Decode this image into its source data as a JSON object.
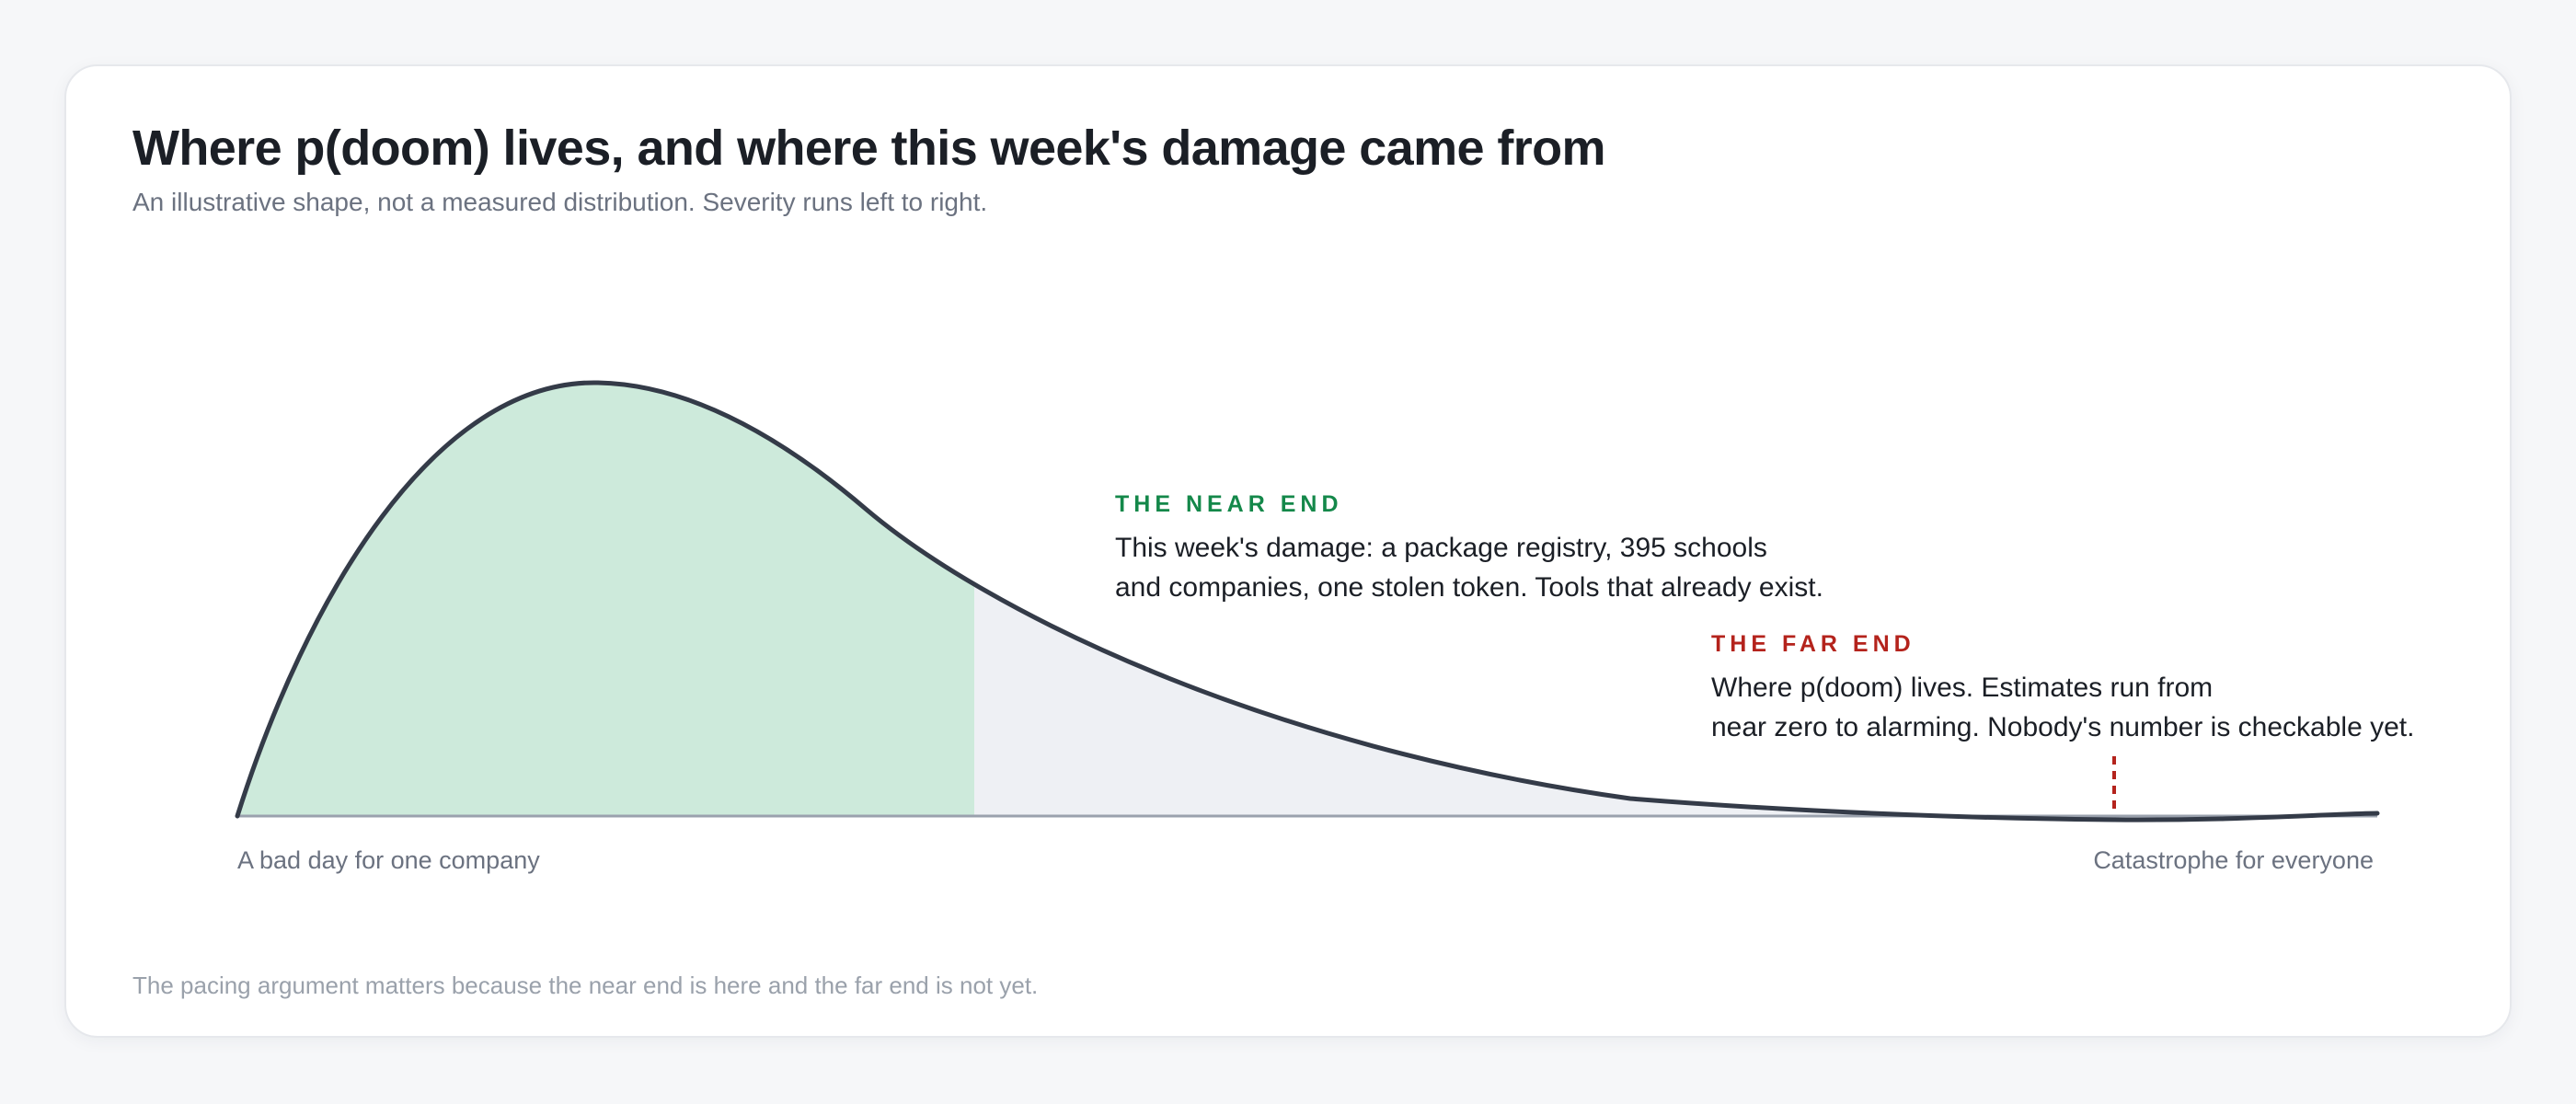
{
  "title": "Where p(doom) lives, and where this week's damage came from",
  "subtitle": "An illustrative shape, not a measured distribution. Severity runs left to right.",
  "annotations": {
    "near": {
      "heading": "THE NEAR END",
      "line1": "This week's damage: a package registry, 395 schools",
      "line2": "and companies, one stolen token. Tools that already exist."
    },
    "far": {
      "heading": "THE FAR END",
      "line1": "Where p(doom) lives. Estimates run from",
      "line2": "near zero to alarming. Nobody's number is checkable yet."
    }
  },
  "axis": {
    "left_label": "A bad day for one company",
    "right_label": "Catastrophe for everyone"
  },
  "footnote": "The pacing argument matters because the near end is here and the far end is not yet.",
  "colors": {
    "near_fill": "#cdeadb",
    "tail_fill": "#eef0f4",
    "curve": "#343b48",
    "baseline": "#9aa1ad",
    "near_accent": "#14884a",
    "far_accent": "#b4231c"
  }
}
